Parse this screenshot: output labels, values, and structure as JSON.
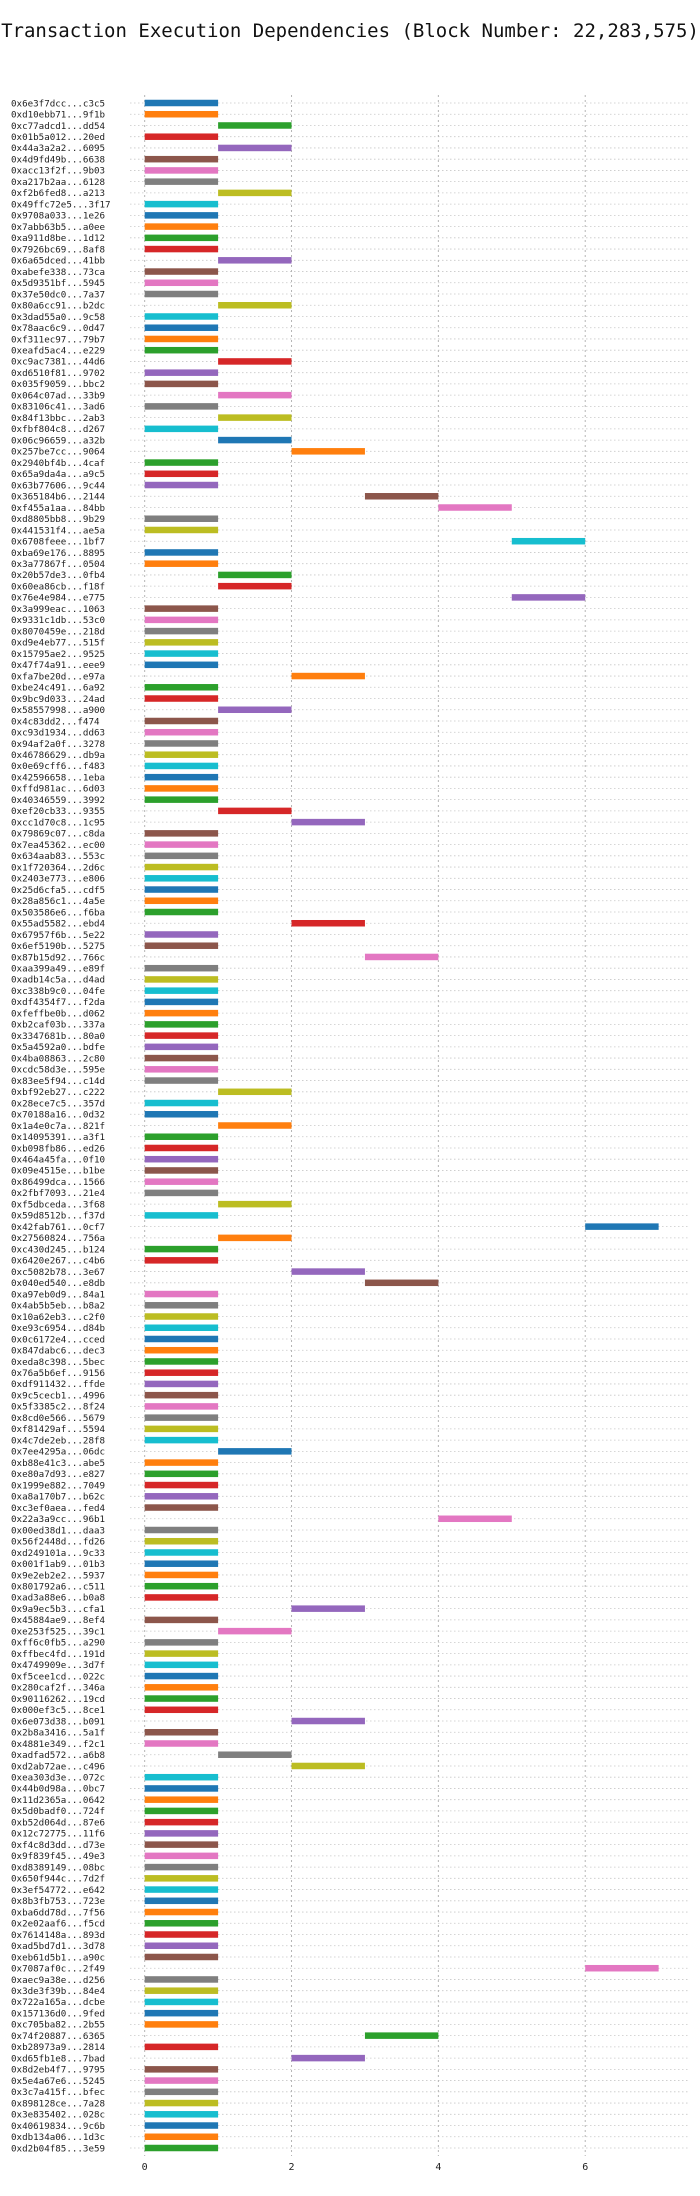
{
  "chart_data": {
    "type": "gantt",
    "title": "Transaction Execution Dependencies (Block Number: 22,283,575)",
    "xlabel": "",
    "ylabel": "",
    "xlim": [
      -0.2,
      7.4
    ],
    "xticks": [
      0,
      2,
      4,
      6
    ],
    "grid": true,
    "grid_style": "dotted",
    "palette": [
      "#1f77b4",
      "#ff7f0e",
      "#2ca02c",
      "#d62728",
      "#9467bd",
      "#8c564b",
      "#e377c2",
      "#7f7f7f",
      "#bcbd22",
      "#17becf"
    ],
    "transactions": [
      {
        "label": "0x6e3f7dcc...c3c5",
        "start": 0,
        "end": 1
      },
      {
        "label": "0xd10ebb71...9f1b",
        "start": 0,
        "end": 1
      },
      {
        "label": "0xc77adcd1...dd54",
        "start": 1,
        "end": 2
      },
      {
        "label": "0x01b5a012...20ed",
        "start": 0,
        "end": 1
      },
      {
        "label": "0x44a3a2a2...6095",
        "start": 1,
        "end": 2
      },
      {
        "label": "0x4d9fd49b...6638",
        "start": 0,
        "end": 1
      },
      {
        "label": "0xacc13f2f...9b03",
        "start": 0,
        "end": 1
      },
      {
        "label": "0xa217b2aa...6128",
        "start": 0,
        "end": 1
      },
      {
        "label": "0xf2b6fed8...a213",
        "start": 1,
        "end": 2
      },
      {
        "label": "0x49ffc72e5...3f17",
        "start": 0,
        "end": 1
      },
      {
        "label": "0x9708a033...1e26",
        "start": 0,
        "end": 1
      },
      {
        "label": "0x7abb63b5...a0ee",
        "start": 0,
        "end": 1
      },
      {
        "label": "0xa911d8be...1d12",
        "start": 0,
        "end": 1
      },
      {
        "label": "0x7926bc69...8af8",
        "start": 0,
        "end": 1
      },
      {
        "label": "0x6a65dced...41bb",
        "start": 1,
        "end": 2
      },
      {
        "label": "0xabefe338...73ca",
        "start": 0,
        "end": 1
      },
      {
        "label": "0x5d9351bf...5945",
        "start": 0,
        "end": 1
      },
      {
        "label": "0x37e50dc0...7a37",
        "start": 0,
        "end": 1
      },
      {
        "label": "0x80a6cc91...b2dc",
        "start": 1,
        "end": 2
      },
      {
        "label": "0x3dad55a0...9c58",
        "start": 0,
        "end": 1
      },
      {
        "label": "0x78aac6c9...0d47",
        "start": 0,
        "end": 1
      },
      {
        "label": "0xf311ec97...79b7",
        "start": 0,
        "end": 1
      },
      {
        "label": "0xeafd5ac4...e229",
        "start": 0,
        "end": 1
      },
      {
        "label": "0xc9ac7381...44d6",
        "start": 1,
        "end": 2
      },
      {
        "label": "0xd6510f81...9702",
        "start": 0,
        "end": 1
      },
      {
        "label": "0x035f9059...bbc2",
        "start": 0,
        "end": 1
      },
      {
        "label": "0x064c07ad...33b9",
        "start": 1,
        "end": 2
      },
      {
        "label": "0x83106c41...3ad6",
        "start": 0,
        "end": 1
      },
      {
        "label": "0x84f13bbc...2ab3",
        "start": 1,
        "end": 2
      },
      {
        "label": "0xfbf804c8...d267",
        "start": 0,
        "end": 1
      },
      {
        "label": "0x06c96659...a32b",
        "start": 1,
        "end": 2
      },
      {
        "label": "0x257be7cc...9064",
        "start": 2,
        "end": 3
      },
      {
        "label": "0x2940bf4b...4caf",
        "start": 0,
        "end": 1
      },
      {
        "label": "0x65a9da4a...a9c5",
        "start": 0,
        "end": 1
      },
      {
        "label": "0x63b77606...9c44",
        "start": 0,
        "end": 1
      },
      {
        "label": "0x365184b6...2144",
        "start": 3,
        "end": 4
      },
      {
        "label": "0xf455a1aa...84bb",
        "start": 4,
        "end": 5
      },
      {
        "label": "0xd8805bb8...9b29",
        "start": 0,
        "end": 1
      },
      {
        "label": "0x441531f4...ae5a",
        "start": 0,
        "end": 1
      },
      {
        "label": "0x6708feee...1bf7",
        "start": 5,
        "end": 6
      },
      {
        "label": "0xba69e176...8895",
        "start": 0,
        "end": 1
      },
      {
        "label": "0x3a77867f...0504",
        "start": 0,
        "end": 1
      },
      {
        "label": "0x20b57de3...0fb4",
        "start": 1,
        "end": 2
      },
      {
        "label": "0x60ea86cb...f18f",
        "start": 1,
        "end": 2
      },
      {
        "label": "0x76e4e984...e775",
        "start": 5,
        "end": 6
      },
      {
        "label": "0x3a999eac...1063",
        "start": 0,
        "end": 1
      },
      {
        "label": "0x9331c1db...53c0",
        "start": 0,
        "end": 1
      },
      {
        "label": "0x8070459e...218d",
        "start": 0,
        "end": 1
      },
      {
        "label": "0xd9e4eb77...515f",
        "start": 0,
        "end": 1
      },
      {
        "label": "0x15795ae2...9525",
        "start": 0,
        "end": 1
      },
      {
        "label": "0x47f74a91...eee9",
        "start": 0,
        "end": 1
      },
      {
        "label": "0xfa7be20d...e97a",
        "start": 2,
        "end": 3
      },
      {
        "label": "0xbe24c491...6a92",
        "start": 0,
        "end": 1
      },
      {
        "label": "0x9bc9d033...24ad",
        "start": 0,
        "end": 1
      },
      {
        "label": "0x58557998...a900",
        "start": 1,
        "end": 2
      },
      {
        "label": "0x4c83dd2...f474",
        "start": 0,
        "end": 1
      },
      {
        "label": "0xc93d1934...dd63",
        "start": 0,
        "end": 1
      },
      {
        "label": "0x94af2a0f...3278",
        "start": 0,
        "end": 1
      },
      {
        "label": "0x46786629...db9a",
        "start": 0,
        "end": 1
      },
      {
        "label": "0x0e69cff6...f483",
        "start": 0,
        "end": 1
      },
      {
        "label": "0x42596658...1eba",
        "start": 0,
        "end": 1
      },
      {
        "label": "0xffd981ac...6d03",
        "start": 0,
        "end": 1
      },
      {
        "label": "0x40346559...3992",
        "start": 0,
        "end": 1
      },
      {
        "label": "0xef20cb33...9355",
        "start": 1,
        "end": 2
      },
      {
        "label": "0xcc1d70c8...1c95",
        "start": 2,
        "end": 3
      },
      {
        "label": "0x79869c07...c8da",
        "start": 0,
        "end": 1
      },
      {
        "label": "0x7ea45362...ec00",
        "start": 0,
        "end": 1
      },
      {
        "label": "0x634aab83...553c",
        "start": 0,
        "end": 1
      },
      {
        "label": "0x1f720364...2d6c",
        "start": 0,
        "end": 1
      },
      {
        "label": "0x2403e773...e806",
        "start": 0,
        "end": 1
      },
      {
        "label": "0x25d6cfa5...cdf5",
        "start": 0,
        "end": 1
      },
      {
        "label": "0x28a856c1...4a5e",
        "start": 0,
        "end": 1
      },
      {
        "label": "0x503586e6...f6ba",
        "start": 0,
        "end": 1
      },
      {
        "label": "0x55ad5582...ebd4",
        "start": 2,
        "end": 3
      },
      {
        "label": "0x67957f6b...5e22",
        "start": 0,
        "end": 1
      },
      {
        "label": "0x6ef5190b...5275",
        "start": 0,
        "end": 1
      },
      {
        "label": "0x87b15d92...766c",
        "start": 3,
        "end": 4
      },
      {
        "label": "0xaa399a49...e89f",
        "start": 0,
        "end": 1
      },
      {
        "label": "0xadb14c5a...d4ad",
        "start": 0,
        "end": 1
      },
      {
        "label": "0xc338b9c0...04fe",
        "start": 0,
        "end": 1
      },
      {
        "label": "0xdf4354f7...f2da",
        "start": 0,
        "end": 1
      },
      {
        "label": "0xfeffbe0b...d062",
        "start": 0,
        "end": 1
      },
      {
        "label": "0xb2caf03b...337a",
        "start": 0,
        "end": 1
      },
      {
        "label": "0x3347681b...80a0",
        "start": 0,
        "end": 1
      },
      {
        "label": "0x5a4592a0...bdfe",
        "start": 0,
        "end": 1
      },
      {
        "label": "0x4ba08863...2c80",
        "start": 0,
        "end": 1
      },
      {
        "label": "0xcdc58d3e...595e",
        "start": 0,
        "end": 1
      },
      {
        "label": "0x83ee5f94...c14d",
        "start": 0,
        "end": 1
      },
      {
        "label": "0xbf92eb27...c222",
        "start": 1,
        "end": 2
      },
      {
        "label": "0x28ece7c5...357d",
        "start": 0,
        "end": 1
      },
      {
        "label": "0x70188a16...0d32",
        "start": 0,
        "end": 1
      },
      {
        "label": "0x1a4e0c7a...821f",
        "start": 1,
        "end": 2
      },
      {
        "label": "0x14095391...a3f1",
        "start": 0,
        "end": 1
      },
      {
        "label": "0xb098fb86...ed26",
        "start": 0,
        "end": 1
      },
      {
        "label": "0x464a45fa...0f10",
        "start": 0,
        "end": 1
      },
      {
        "label": "0x09e4515e...b1be",
        "start": 0,
        "end": 1
      },
      {
        "label": "0x86499dca...1566",
        "start": 0,
        "end": 1
      },
      {
        "label": "0x2fbf7093...21e4",
        "start": 0,
        "end": 1
      },
      {
        "label": "0xf5dbceda...3f68",
        "start": 1,
        "end": 2
      },
      {
        "label": "0x59d8512b...f37d",
        "start": 0,
        "end": 1
      },
      {
        "label": "0x42fab761...0cf7",
        "start": 6,
        "end": 7
      },
      {
        "label": "0x27560824...756a",
        "start": 1,
        "end": 2
      },
      {
        "label": "0xc430d245...b124",
        "start": 0,
        "end": 1
      },
      {
        "label": "0x6420e267...c4b6",
        "start": 0,
        "end": 1
      },
      {
        "label": "0xc5082b78...3e67",
        "start": 2,
        "end": 3
      },
      {
        "label": "0x040ed540...e8db",
        "start": 3,
        "end": 4
      },
      {
        "label": "0xa97eb0d9...84a1",
        "start": 0,
        "end": 1
      },
      {
        "label": "0x4ab5b5eb...b8a2",
        "start": 0,
        "end": 1
      },
      {
        "label": "0x10a62eb3...c2f0",
        "start": 0,
        "end": 1
      },
      {
        "label": "0xe93c6954...d84b",
        "start": 0,
        "end": 1
      },
      {
        "label": "0x0c6172e4...cced",
        "start": 0,
        "end": 1
      },
      {
        "label": "0x847dabc6...dec3",
        "start": 0,
        "end": 1
      },
      {
        "label": "0xeda8c398...5bec",
        "start": 0,
        "end": 1
      },
      {
        "label": "0x76a5b6ef...9156",
        "start": 0,
        "end": 1
      },
      {
        "label": "0xdf911432...ffde",
        "start": 0,
        "end": 1
      },
      {
        "label": "0x9c5cecb1...4996",
        "start": 0,
        "end": 1
      },
      {
        "label": "0x5f3385c2...8f24",
        "start": 0,
        "end": 1
      },
      {
        "label": "0x8cd0e566...5679",
        "start": 0,
        "end": 1
      },
      {
        "label": "0xf81429af...5594",
        "start": 0,
        "end": 1
      },
      {
        "label": "0x4c7de2eb...28f8",
        "start": 0,
        "end": 1
      },
      {
        "label": "0x7ee4295a...06dc",
        "start": 1,
        "end": 2
      },
      {
        "label": "0xb88e41c3...abe5",
        "start": 0,
        "end": 1
      },
      {
        "label": "0xe80a7d93...e827",
        "start": 0,
        "end": 1
      },
      {
        "label": "0x1999e882...7049",
        "start": 0,
        "end": 1
      },
      {
        "label": "0xa8a170b7...b62c",
        "start": 0,
        "end": 1
      },
      {
        "label": "0xc3ef0aea...fed4",
        "start": 0,
        "end": 1
      },
      {
        "label": "0x22a3a9cc...96b1",
        "start": 4,
        "end": 5
      },
      {
        "label": "0x00ed38d1...daa3",
        "start": 0,
        "end": 1
      },
      {
        "label": "0x56f2448d...fd26",
        "start": 0,
        "end": 1
      },
      {
        "label": "0xd249101a...9c33",
        "start": 0,
        "end": 1
      },
      {
        "label": "0x001f1ab9...01b3",
        "start": 0,
        "end": 1
      },
      {
        "label": "0x9e2eb2e2...5937",
        "start": 0,
        "end": 1
      },
      {
        "label": "0x801792a6...c511",
        "start": 0,
        "end": 1
      },
      {
        "label": "0xad3a88e6...b0a8",
        "start": 0,
        "end": 1
      },
      {
        "label": "0x9a9ec5b3...cfa1",
        "start": 2,
        "end": 3
      },
      {
        "label": "0x45884ae9...8ef4",
        "start": 0,
        "end": 1
      },
      {
        "label": "0xe253f525...39c1",
        "start": 1,
        "end": 2
      },
      {
        "label": "0xff6c0fb5...a290",
        "start": 0,
        "end": 1
      },
      {
        "label": "0xffbec4fd...191d",
        "start": 0,
        "end": 1
      },
      {
        "label": "0x4749909e...3d7f",
        "start": 0,
        "end": 1
      },
      {
        "label": "0xf5cee1cd...022c",
        "start": 0,
        "end": 1
      },
      {
        "label": "0x280caf2f...346a",
        "start": 0,
        "end": 1
      },
      {
        "label": "0x90116262...19cd",
        "start": 0,
        "end": 1
      },
      {
        "label": "0x000ef3c5...8ce1",
        "start": 0,
        "end": 1
      },
      {
        "label": "0x6e073d38...b091",
        "start": 2,
        "end": 3
      },
      {
        "label": "0x2b8a3416...5a1f",
        "start": 0,
        "end": 1
      },
      {
        "label": "0x4881e349...f2c1",
        "start": 0,
        "end": 1
      },
      {
        "label": "0xadfad572...a6b8",
        "start": 1,
        "end": 2
      },
      {
        "label": "0xd2ab72ae...c496",
        "start": 2,
        "end": 3
      },
      {
        "label": "0xea303d3e...072c",
        "start": 0,
        "end": 1
      },
      {
        "label": "0x44b0d98a...0bc7",
        "start": 0,
        "end": 1
      },
      {
        "label": "0x11d2365a...0642",
        "start": 0,
        "end": 1
      },
      {
        "label": "0x5d0badf0...724f",
        "start": 0,
        "end": 1
      },
      {
        "label": "0xb52d064d...87e6",
        "start": 0,
        "end": 1
      },
      {
        "label": "0x12c72775...11f6",
        "start": 0,
        "end": 1
      },
      {
        "label": "0xf4c8d3dd...d73e",
        "start": 0,
        "end": 1
      },
      {
        "label": "0x9f839f45...49e3",
        "start": 0,
        "end": 1
      },
      {
        "label": "0xd8389149...08bc",
        "start": 0,
        "end": 1
      },
      {
        "label": "0x650f944c...7d2f",
        "start": 0,
        "end": 1
      },
      {
        "label": "0x3ef54772...e642",
        "start": 0,
        "end": 1
      },
      {
        "label": "0x8b3fb753...723e",
        "start": 0,
        "end": 1
      },
      {
        "label": "0xba6dd78d...7f56",
        "start": 0,
        "end": 1
      },
      {
        "label": "0x2e02aaf6...f5cd",
        "start": 0,
        "end": 1
      },
      {
        "label": "0x7614148a...893d",
        "start": 0,
        "end": 1
      },
      {
        "label": "0xad5bd7d1...3d78",
        "start": 0,
        "end": 1
      },
      {
        "label": "0xeb61d5b1...a90c",
        "start": 0,
        "end": 1
      },
      {
        "label": "0x7087af0c...2f49",
        "start": 6,
        "end": 7
      },
      {
        "label": "0xaec9a38e...d256",
        "start": 0,
        "end": 1
      },
      {
        "label": "0x3de3f39b...84e4",
        "start": 0,
        "end": 1
      },
      {
        "label": "0x722a165a...dcbe",
        "start": 0,
        "end": 1
      },
      {
        "label": "0x157136d0...9fed",
        "start": 0,
        "end": 1
      },
      {
        "label": "0xc705ba82...2b55",
        "start": 0,
        "end": 1
      },
      {
        "label": "0x74f20887...6365",
        "start": 3,
        "end": 4
      },
      {
        "label": "0xb28973a9...2814",
        "start": 0,
        "end": 1
      },
      {
        "label": "0xd65fb1e8...7bad",
        "start": 2,
        "end": 3
      },
      {
        "label": "0x8d2eb4f7...9795",
        "start": 0,
        "end": 1
      },
      {
        "label": "0x5e4a67e6...5245",
        "start": 0,
        "end": 1
      },
      {
        "label": "0x3c7a415f...bfec",
        "start": 0,
        "end": 1
      },
      {
        "label": "0x898128ce...7a28",
        "start": 0,
        "end": 1
      },
      {
        "label": "0x3e835402...028c",
        "start": 0,
        "end": 1
      },
      {
        "label": "0x40619834...9c6b",
        "start": 0,
        "end": 1
      },
      {
        "label": "0xdb134a06...1d3c",
        "start": 0,
        "end": 1
      },
      {
        "label": "0xd2b04f85...3e59",
        "start": 0,
        "end": 1
      }
    ]
  }
}
